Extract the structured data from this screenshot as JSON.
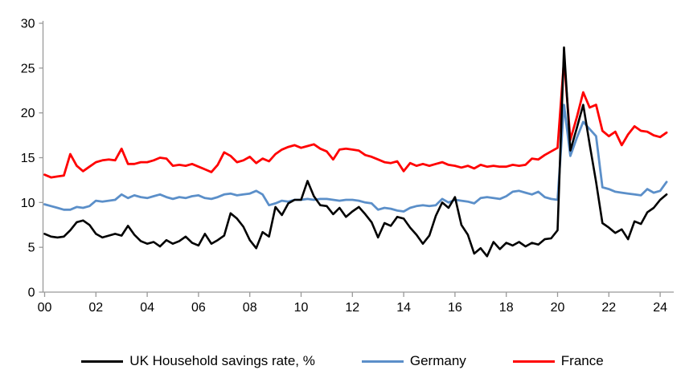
{
  "chart_data": {
    "type": "line",
    "title": "",
    "frequency": "quarterly",
    "x_start_year": 2000,
    "x_step_years": 0.25,
    "x_axis": {
      "tick_labels": [
        "00",
        "02",
        "04",
        "06",
        "08",
        "10",
        "12",
        "14",
        "16",
        "18",
        "20",
        "22",
        "24"
      ],
      "tick_step_years": 2,
      "range_years": [
        2000,
        2024.25
      ]
    },
    "y_axis": {
      "ticks": [
        0,
        5,
        10,
        15,
        20,
        25,
        30
      ],
      "range": [
        0,
        30
      ],
      "grid": false
    },
    "legend_position": "bottom",
    "axis_color": "#999999",
    "series": [
      {
        "name": "UK Household savings rate, %",
        "color": "#000000",
        "line_width": 2.6,
        "values": [
          6.5,
          6.2,
          6.1,
          6.2,
          6.9,
          7.8,
          8.0,
          7.5,
          6.5,
          6.1,
          6.3,
          6.5,
          6.3,
          7.4,
          6.4,
          5.7,
          5.4,
          5.6,
          5.1,
          5.8,
          5.4,
          5.7,
          6.2,
          5.5,
          5.2,
          6.5,
          5.4,
          5.8,
          6.3,
          8.8,
          8.2,
          7.3,
          5.8,
          4.9,
          6.7,
          6.2,
          9.5,
          8.6,
          9.9,
          10.3,
          10.3,
          12.4,
          10.7,
          9.7,
          9.6,
          8.7,
          9.4,
          8.4,
          9.0,
          9.5,
          8.7,
          7.8,
          6.1,
          7.7,
          7.4,
          8.4,
          8.2,
          7.2,
          6.4,
          5.4,
          6.3,
          8.5,
          10.0,
          9.4,
          10.6,
          7.5,
          6.4,
          4.3,
          4.9,
          4.0,
          5.6,
          4.8,
          5.5,
          5.2,
          5.6,
          5.1,
          5.5,
          5.3,
          5.9,
          6.0,
          6.9,
          27.3,
          15.8,
          18.3,
          20.9,
          16.5,
          12.3,
          7.7,
          7.2,
          6.6,
          7.0,
          5.9,
          7.9,
          7.6,
          8.9,
          9.4,
          10.3,
          10.9
        ]
      },
      {
        "name": "Germany",
        "color": "#5B8FC9",
        "line_width": 2.8,
        "values": [
          9.8,
          9.6,
          9.4,
          9.2,
          9.2,
          9.5,
          9.4,
          9.6,
          10.2,
          10.1,
          10.2,
          10.3,
          10.9,
          10.5,
          10.8,
          10.6,
          10.5,
          10.7,
          10.9,
          10.6,
          10.4,
          10.6,
          10.5,
          10.7,
          10.8,
          10.5,
          10.4,
          10.6,
          10.9,
          11.0,
          10.8,
          10.9,
          11.0,
          11.3,
          10.9,
          9.7,
          9.9,
          10.2,
          10.1,
          10.3,
          10.3,
          10.4,
          10.3,
          10.4,
          10.4,
          10.3,
          10.2,
          10.3,
          10.3,
          10.2,
          10.0,
          9.9,
          9.2,
          9.4,
          9.3,
          9.1,
          9.0,
          9.4,
          9.6,
          9.7,
          9.6,
          9.7,
          10.4,
          10.0,
          10.3,
          10.2,
          10.1,
          9.9,
          10.5,
          10.6,
          10.5,
          10.4,
          10.7,
          11.2,
          11.3,
          11.1,
          10.9,
          11.2,
          10.6,
          10.4,
          10.3,
          20.9,
          15.2,
          17.2,
          19.0,
          18.2,
          17.4,
          11.7,
          11.5,
          11.2,
          11.1,
          11.0,
          10.9,
          10.8,
          11.5,
          11.1,
          11.3,
          12.3
        ]
      },
      {
        "name": "France",
        "color": "#FF0000",
        "line_width": 2.8,
        "values": [
          13.1,
          12.8,
          12.9,
          13.0,
          15.4,
          14.1,
          13.5,
          14.0,
          14.5,
          14.7,
          14.8,
          14.7,
          16.0,
          14.3,
          14.3,
          14.5,
          14.5,
          14.7,
          15.0,
          14.9,
          14.1,
          14.2,
          14.1,
          14.3,
          14.0,
          13.7,
          13.4,
          14.2,
          15.6,
          15.2,
          14.5,
          14.7,
          15.1,
          14.4,
          14.9,
          14.6,
          15.4,
          15.9,
          16.2,
          16.4,
          16.1,
          16.3,
          16.5,
          16.0,
          15.7,
          14.8,
          15.9,
          16.0,
          15.9,
          15.8,
          15.3,
          15.1,
          14.8,
          14.5,
          14.4,
          14.6,
          13.5,
          14.4,
          14.1,
          14.3,
          14.1,
          14.3,
          14.5,
          14.2,
          14.1,
          13.9,
          14.1,
          13.8,
          14.2,
          14.0,
          14.1,
          14.0,
          14.0,
          14.2,
          14.1,
          14.2,
          14.9,
          14.8,
          15.3,
          15.7,
          16.1,
          25.9,
          17.0,
          19.5,
          22.3,
          20.6,
          20.9,
          18.0,
          17.4,
          17.9,
          16.4,
          17.6,
          18.5,
          18.0,
          17.9,
          17.5,
          17.3,
          17.8
        ]
      }
    ]
  }
}
